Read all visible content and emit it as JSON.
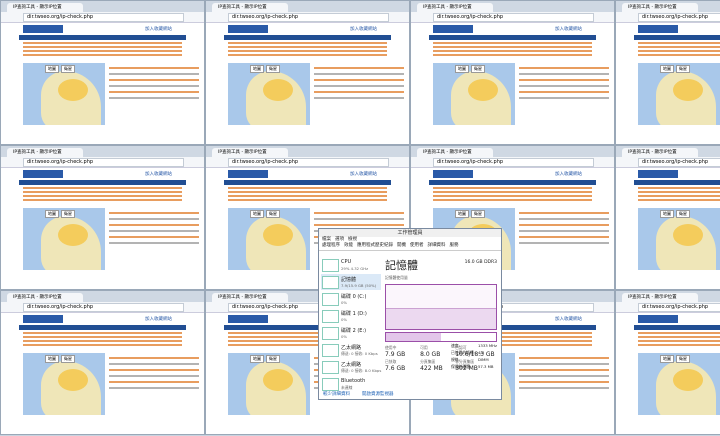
{
  "browser": {
    "tab": "IP查詢工具 - 顯示IP位置",
    "url": "dir.twseo.org/ip-check.php",
    "button": "加入收藏網站",
    "map_buttons": [
      "地圖",
      "衛星"
    ]
  },
  "task_manager": {
    "title": "工作管理員",
    "menu": [
      "檔案",
      "選項",
      "檢視"
    ],
    "tabs": [
      "處理程序",
      "效能",
      "應用程式歷史紀錄",
      "開機",
      "使用者",
      "詳細資料",
      "服務"
    ],
    "resources": [
      {
        "name": "CPU",
        "detail": "29% 4.32 GHz"
      },
      {
        "name": "記憶體",
        "detail": "7.9/15.9 GB (50%)"
      },
      {
        "name": "磁碟 0 (C:)",
        "detail": "0%"
      },
      {
        "name": "磁碟 1 (D:)",
        "detail": "0%"
      },
      {
        "name": "磁碟 2 (E:)",
        "detail": "0%"
      },
      {
        "name": "乙太網路",
        "detail": "傳送: 0 接收: 0 Kbps"
      },
      {
        "name": "乙太網路",
        "detail": "傳送: 0 接收: 8.0 Kbps"
      },
      {
        "name": "Bluetooth",
        "detail": "未連線"
      }
    ],
    "heading": "記憶體",
    "spec": "16.0 GB DDR3",
    "graph_label": "記憶體使用量",
    "stats": [
      {
        "label": "使用中",
        "value": "7.9 GB"
      },
      {
        "label": "可用",
        "value": "8.0 GB"
      },
      {
        "label": "已認可",
        "value": "10.6/18.3 GB"
      },
      {
        "label": "已快取",
        "value": "7.6 GB"
      },
      {
        "label": "分頁集區",
        "value": "422 MB"
      },
      {
        "label": "非分頁集區",
        "value": "302 MB"
      }
    ],
    "specs": [
      {
        "label": "速度:",
        "value": "1333 MHz"
      },
      {
        "label": "已使用的插槽:",
        "value": "4/4"
      },
      {
        "label": "規格:",
        "value": "DIMM"
      },
      {
        "label": "保留給硬體:",
        "value": "57.3 MB"
      }
    ],
    "footer": [
      "較少詳細資料",
      "開啟資源監視器"
    ]
  }
}
